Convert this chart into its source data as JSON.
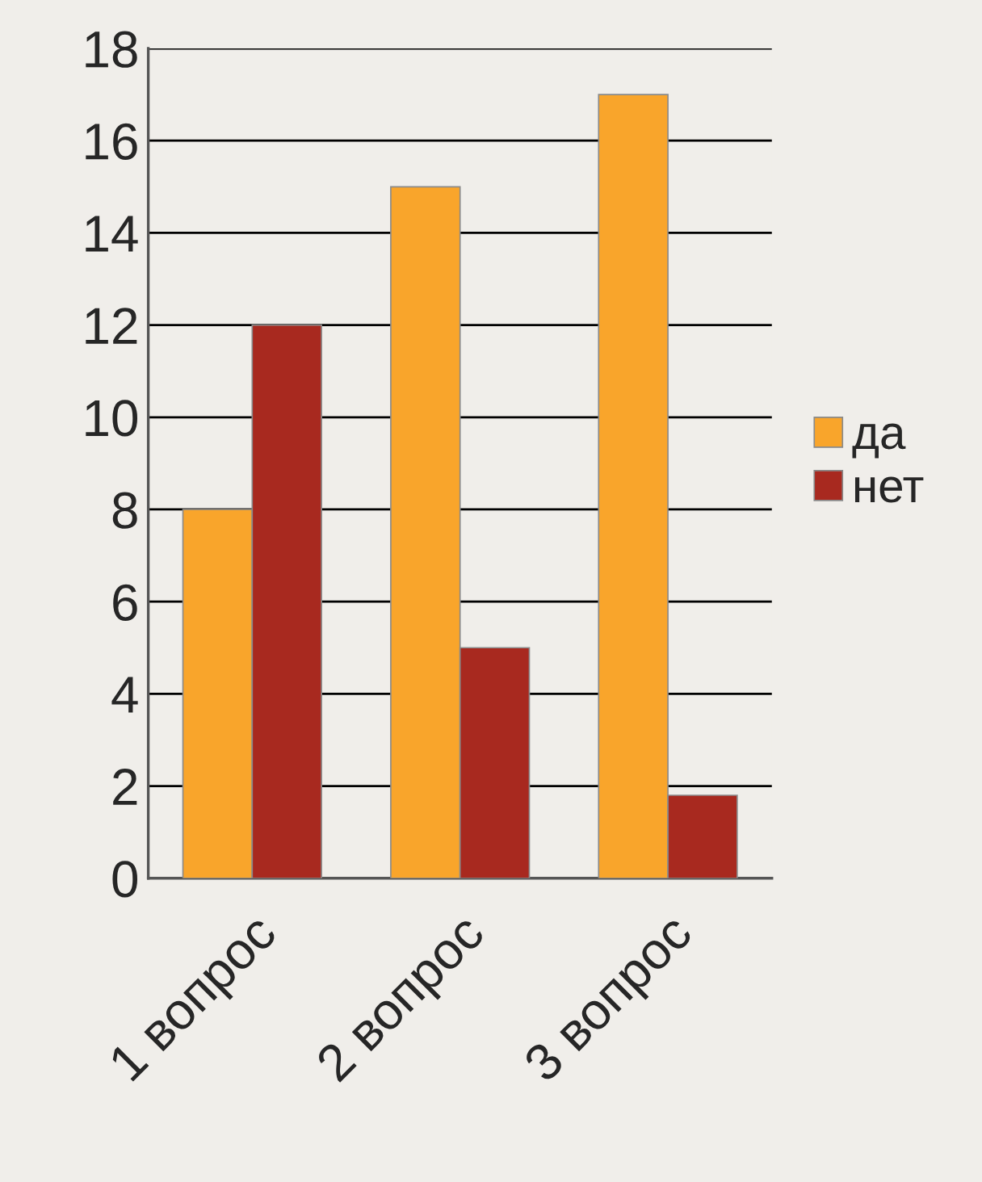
{
  "chart_data": {
    "type": "bar",
    "categories": [
      "1 вопрос",
      "2 вопрос",
      "3 вопрос"
    ],
    "series": [
      {
        "name": "да",
        "color": "#f9a52b",
        "values": [
          8,
          15,
          17
        ]
      },
      {
        "name": "нет",
        "color": "#a8291f",
        "values": [
          12,
          5,
          1.8
        ]
      }
    ],
    "ylim": [
      0,
      18
    ],
    "yticks": [
      0,
      2,
      4,
      6,
      8,
      10,
      12,
      14,
      16,
      18
    ],
    "grid": "y",
    "legend": "right"
  }
}
